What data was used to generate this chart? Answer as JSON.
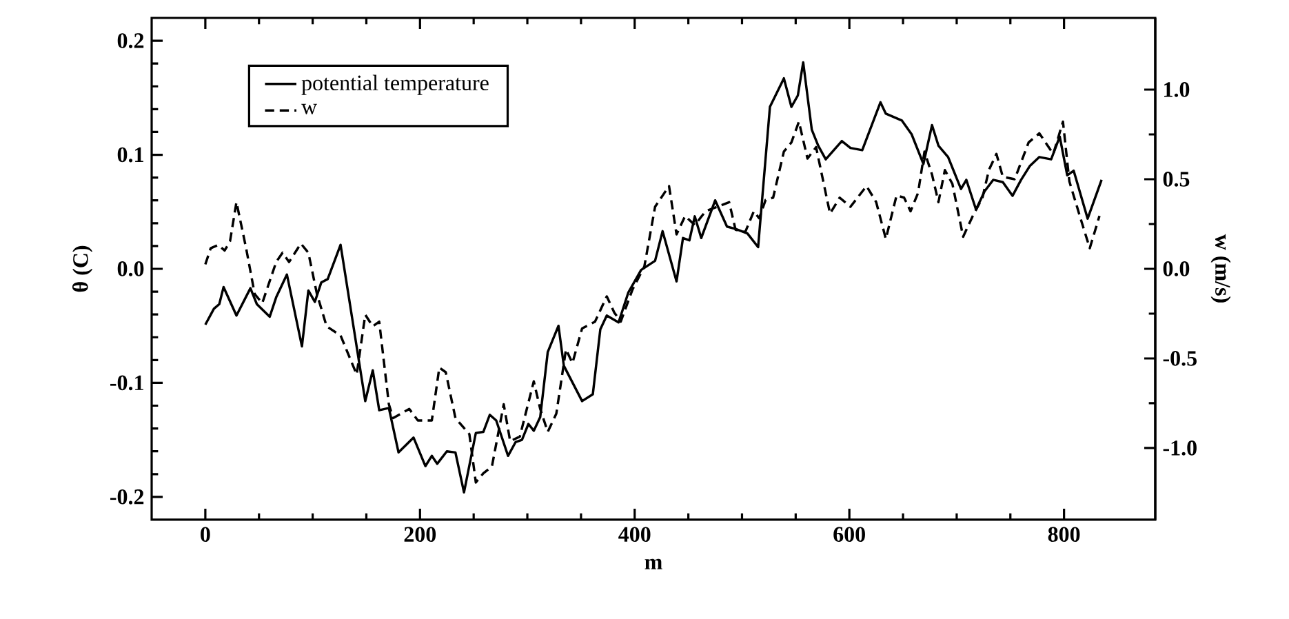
{
  "chart_data": {
    "type": "line",
    "xlabel": "m",
    "ylabel": "θ (C)",
    "y2label": "w (m/s)",
    "xlim": [
      -50,
      885
    ],
    "ylim": [
      -0.22,
      0.22
    ],
    "y2lim": [
      -1.4,
      1.4
    ],
    "xticks": [
      0,
      200,
      400,
      600,
      800
    ],
    "yticks": [
      {
        "value": -0.2,
        "label": "-0.2"
      },
      {
        "value": -0.1,
        "label": "-0.1"
      },
      {
        "value": 0,
        "label": "0.0"
      },
      {
        "value": 0.1,
        "label": "0.1"
      },
      {
        "value": 0.2,
        "label": "0.2"
      }
    ],
    "y2ticks": [
      {
        "value": -1,
        "label": "-1.0"
      },
      {
        "value": -0.5,
        "label": "-0.5"
      },
      {
        "value": 0,
        "label": "0.0"
      },
      {
        "value": 0.5,
        "label": "0.5"
      },
      {
        "value": 1,
        "label": "1.0"
      }
    ],
    "legend": "top left",
    "grid": false,
    "marker": "none",
    "series": [
      {
        "name": "potential temperature",
        "color": "#000000",
        "line_style": "solid",
        "x": [
          0,
          8,
          13,
          17,
          29,
          42,
          48,
          60,
          66,
          76,
          90,
          96,
          102,
          108,
          114,
          126,
          149,
          156,
          162,
          171,
          180,
          194,
          205,
          211,
          216,
          225,
          233,
          241,
          252,
          259,
          265,
          271,
          282,
          289,
          295,
          301,
          306,
          312,
          319,
          329,
          334,
          351,
          361,
          368,
          374,
          385,
          394,
          406,
          419,
          426,
          439,
          445,
          451,
          456,
          462,
          475,
          486,
          494,
          505,
          515,
          526,
          539,
          546,
          552,
          557,
          565,
          571,
          578,
          593,
          601,
          612,
          629,
          634,
          649,
          658,
          669,
          677,
          683,
          692,
          698,
          704,
          709,
          718,
          726,
          734,
          743,
          752,
          760,
          768,
          777,
          788,
          796,
          803,
          809,
          822,
          835
        ],
        "values": [
          -0.049,
          -0.035,
          -0.031,
          -0.016,
          -0.041,
          -0.017,
          -0.031,
          -0.042,
          -0.025,
          -0.005,
          -0.068,
          -0.019,
          -0.029,
          -0.012,
          -0.009,
          0.021,
          -0.116,
          -0.089,
          -0.124,
          -0.122,
          -0.161,
          -0.148,
          -0.173,
          -0.164,
          -0.171,
          -0.16,
          -0.161,
          -0.196,
          -0.144,
          -0.143,
          -0.128,
          -0.133,
          -0.164,
          -0.152,
          -0.15,
          -0.136,
          -0.142,
          -0.13,
          -0.073,
          -0.05,
          -0.085,
          -0.116,
          -0.11,
          -0.053,
          -0.041,
          -0.047,
          -0.021,
          -0.001,
          0.007,
          0.033,
          -0.011,
          0.027,
          0.025,
          0.046,
          0.027,
          0.06,
          0.037,
          0.035,
          0.031,
          0.019,
          0.142,
          0.167,
          0.142,
          0.152,
          0.181,
          0.122,
          0.108,
          0.096,
          0.112,
          0.106,
          0.104,
          0.146,
          0.136,
          0.13,
          0.118,
          0.092,
          0.126,
          0.108,
          0.098,
          0.084,
          0.07,
          0.078,
          0.052,
          0.068,
          0.078,
          0.076,
          0.064,
          0.078,
          0.09,
          0.098,
          0.096,
          0.116,
          0.082,
          0.086,
          0.044,
          0.078
        ]
      },
      {
        "name": "w",
        "color": "#000000",
        "line_style": "dashed",
        "axis": "y2",
        "x": [
          0,
          5,
          12,
          18,
          23,
          29,
          38,
          46,
          53,
          66,
          72,
          78,
          89,
          96,
          104,
          113,
          126,
          141,
          149,
          156,
          162,
          171,
          175,
          190,
          198,
          211,
          218,
          224,
          233,
          246,
          252,
          259,
          267,
          278,
          284,
          293,
          306,
          312,
          319,
          327,
          336,
          342,
          351,
          363,
          374,
          381,
          387,
          398,
          409,
          419,
          432,
          439,
          447,
          456,
          466,
          477,
          488,
          494,
          503,
          511,
          516,
          522,
          529,
          539,
          546,
          553,
          561,
          569,
          582,
          591,
          601,
          616,
          625,
          634,
          644,
          651,
          657,
          664,
          670,
          677,
          683,
          689,
          696,
          706,
          715,
          724,
          730,
          737,
          743,
          754,
          767,
          777,
          790,
          799,
          805,
          816,
          824,
          833
        ],
        "values": [
          0.025,
          0.115,
          0.133,
          0.102,
          0.154,
          0.372,
          0.115,
          -0.141,
          -0.192,
          0.038,
          0.09,
          0.038,
          0.141,
          0.09,
          -0.141,
          -0.321,
          -0.372,
          -0.59,
          -0.256,
          -0.321,
          -0.295,
          -0.756,
          -0.833,
          -0.782,
          -0.846,
          -0.846,
          -0.551,
          -0.577,
          -0.833,
          -0.923,
          -1.192,
          -1.141,
          -1.103,
          -0.756,
          -0.962,
          -0.936,
          -0.628,
          -0.782,
          -0.91,
          -0.808,
          -0.449,
          -0.526,
          -0.333,
          -0.295,
          -0.154,
          -0.244,
          -0.295,
          -0.115,
          0.013,
          0.346,
          0.462,
          0.192,
          0.295,
          0.244,
          0.321,
          0.346,
          0.372,
          0.218,
          0.205,
          0.321,
          0.282,
          0.385,
          0.397,
          0.654,
          0.705,
          0.821,
          0.615,
          0.679,
          0.308,
          0.397,
          0.346,
          0.462,
          0.372,
          0.167,
          0.41,
          0.397,
          0.321,
          0.423,
          0.654,
          0.526,
          0.372,
          0.551,
          0.474,
          0.179,
          0.295,
          0.397,
          0.551,
          0.641,
          0.513,
          0.5,
          0.705,
          0.756,
          0.641,
          0.821,
          0.487,
          0.269,
          0.115,
          0.295
        ]
      }
    ]
  }
}
